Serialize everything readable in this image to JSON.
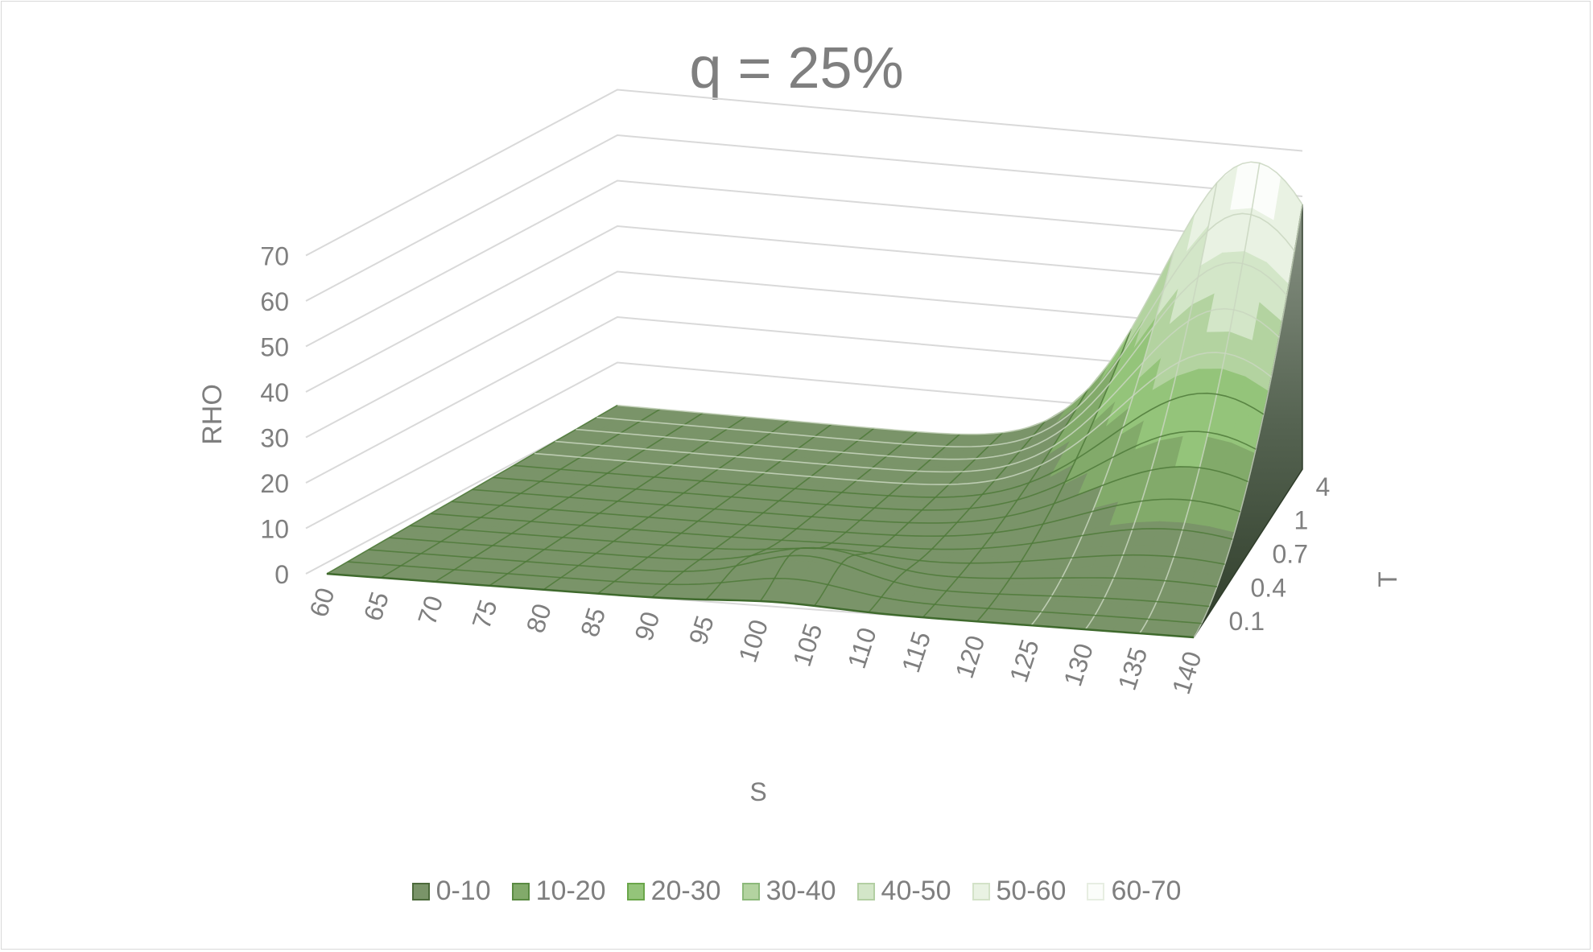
{
  "chart_data": {
    "type": "surface",
    "title": "q = 25%",
    "zlabel": "RHO",
    "xlabel": "S",
    "ylabel": "T",
    "zlim": [
      0,
      70
    ],
    "z_ticks": [
      "0",
      "10",
      "20",
      "30",
      "40",
      "50",
      "60",
      "70"
    ],
    "S": [
      "60",
      "65",
      "70",
      "75",
      "80",
      "85",
      "90",
      "95",
      "100",
      "105",
      "110",
      "115",
      "120",
      "125",
      "130",
      "135",
      "140"
    ],
    "T": [
      "0.1",
      "0.4",
      "0.7",
      "1",
      "4"
    ],
    "legend": [
      {
        "label": "0-10",
        "color": "#7a9469",
        "border": "#4c6a3b"
      },
      {
        "label": "10-20",
        "color": "#82aa6a",
        "border": "#5a8a42"
      },
      {
        "label": "20-30",
        "color": "#94c47a",
        "border": "#6aa64a"
      },
      {
        "label": "30-40",
        "color": "#b3d3a0",
        "border": "#8cb97a"
      },
      {
        "label": "40-50",
        "color": "#d3e6c8",
        "border": "#b3cfa3"
      },
      {
        "label": "50-60",
        "color": "#e9f2e3",
        "border": "#d3e2c8"
      },
      {
        "label": "60-70",
        "color": "#fbfdfa",
        "border": "#e7eee2"
      }
    ]
  }
}
